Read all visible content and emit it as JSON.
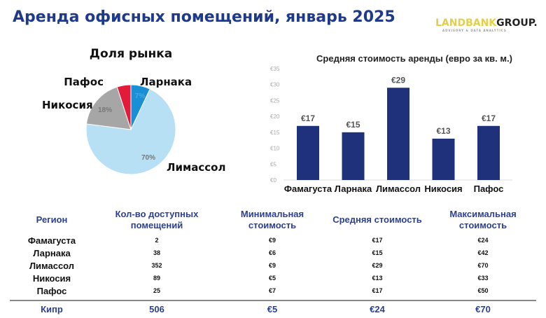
{
  "header": {
    "title": "Аренда офисных помещений, январь 2025",
    "logo_text_a": "LANDBANK",
    "logo_text_b": "GROUP.",
    "logo_tagline": "ADVISORY & DATA ANALYTICS"
  },
  "chart_data": [
    {
      "type": "pie",
      "title": "Доля рынка",
      "slices": [
        {
          "label": "Ларнака",
          "value": 7,
          "value_label": "7%",
          "color": "#1a8fd6"
        },
        {
          "label": "Лимассол",
          "value": 70,
          "value_label": "70%",
          "color": "#b7e0f5"
        },
        {
          "label": "Никосия",
          "value": 18,
          "value_label": "18%",
          "color": "#a6a6a6"
        },
        {
          "label": "Пафос",
          "value": 5,
          "value_label": "",
          "color": "#e31b3a"
        }
      ]
    },
    {
      "type": "bar",
      "title": "Средняя стоимость аренды (евро за кв. м.)",
      "categories": [
        "Фамагуста",
        "Ларнака",
        "Лимассол",
        "Никосия",
        "Пафос"
      ],
      "values": [
        17,
        15,
        29,
        13,
        17
      ],
      "data_labels": [
        "€17",
        "€15",
        "€29",
        "€13",
        "€17"
      ],
      "yticks": [
        "€0",
        "€5",
        "€10",
        "€15",
        "€20",
        "€25",
        "€30",
        "€35"
      ],
      "ylim": [
        0,
        35
      ],
      "color": "#1f317a",
      "grid": false
    }
  ],
  "table": {
    "headers": [
      "Регион",
      "Кол-во доступных помещений",
      "Минимальная стоимость",
      "Средняя стоимость",
      "Максимальная стоимость"
    ],
    "rows": [
      [
        "Фамагуста",
        "2",
        "€9",
        "€17",
        "€24"
      ],
      [
        "Ларнака",
        "38",
        "€6",
        "€15",
        "€42"
      ],
      [
        "Лимассол",
        "352",
        "€9",
        "€29",
        "€70"
      ],
      [
        "Никосия",
        "89",
        "€5",
        "€13",
        "€33"
      ],
      [
        "Пафос",
        "25",
        "€7",
        "€17",
        "€50"
      ]
    ],
    "total": [
      "Кипр",
      "506",
      "€5",
      "€24",
      "€70"
    ]
  }
}
